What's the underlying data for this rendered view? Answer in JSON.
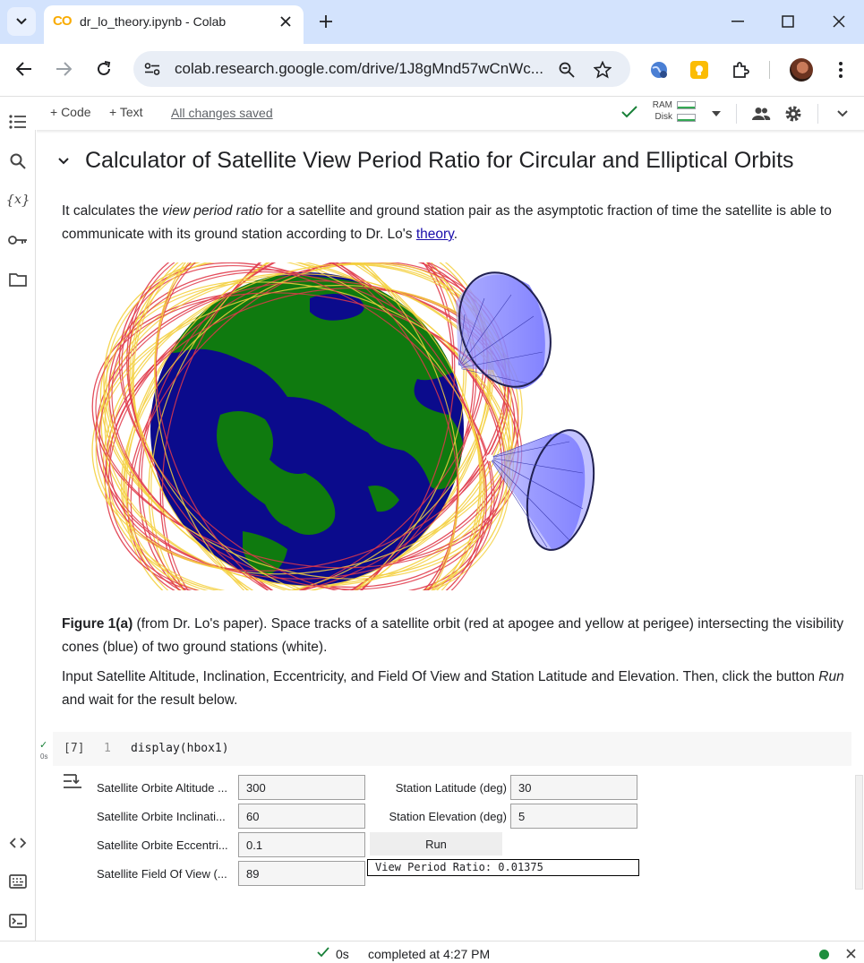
{
  "browser": {
    "tab_title": "dr_lo_theory.ipynb - Colab",
    "tab_logo": "CO",
    "url": "colab.research.google.com/drive/1J8gMnd57wCnWc..."
  },
  "colab_header": {
    "code_button": "+ Code",
    "text_button": "+ Text",
    "save_status": "All changes saved",
    "ram_label": "RAM",
    "disk_label": "Disk"
  },
  "notebook": {
    "heading": "Calculator of Satellite View Period Ratio for Circular and Elliptical Orbits",
    "intro_before_em": "It calculates the ",
    "intro_em": "view period ratio",
    "intro_after_em": " for a satellite and ground station pair as the asymptotic fraction of time the satellite is able to communicate with its ground station according to Dr. Lo's ",
    "intro_link": "theory",
    "intro_end": ".",
    "caption_bold": "Figure 1(a)",
    "caption_rest": " (from Dr. Lo's paper). Space tracks of a satellite orbit (red at apogee and yellow at perigee) intersecting the visibility cones (blue) of two ground stations (white).",
    "instructions_before_em": "Input Satellite Altitude, Inclination, Eccentricity, and Field Of View and Station Latitude and Elevation. Then, click the button ",
    "instructions_em": "Run",
    "instructions_after_em": " and wait for the result below."
  },
  "code_cell": {
    "exec_count": "[7]",
    "line_number": "1",
    "code": "display(hbox1)",
    "run_time": "0s"
  },
  "widgets": {
    "altitude_label": "Satellite Orbite Altitude ...",
    "altitude_value": "300",
    "inclination_label": "Satellite Orbite Inclinati...",
    "inclination_value": "60",
    "eccentricity_label": "Satellite Orbite Eccentri...",
    "eccentricity_value": "0.1",
    "fov_label": "Satellite Field Of View (...",
    "fov_value": "89",
    "latitude_label": "Station Latitude (deg)",
    "latitude_value": "30",
    "elevation_label": "Station Elevation (deg)",
    "elevation_value": "5",
    "run_button": "Run",
    "result": "View Period Ratio: 0.01375"
  },
  "status_bar": {
    "time": "0s",
    "completed": "completed at 4:27 PM"
  },
  "colors": {
    "ocean": "#0b0b8c",
    "land": "#0f7a0f",
    "orbit_apogee": "#e03a4a",
    "orbit_perigee": "#f4d03f",
    "cone": "#6f6fff"
  }
}
